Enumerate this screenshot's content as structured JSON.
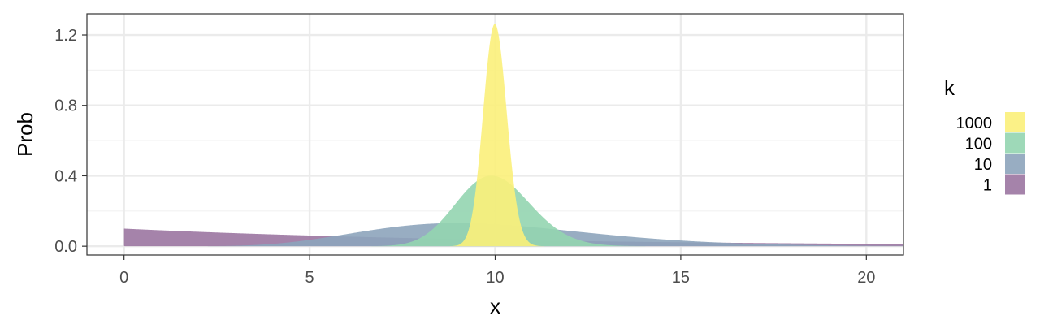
{
  "chart_data": {
    "type": "area",
    "xlabel": "x",
    "ylabel": "Prob",
    "xlim": [
      -1,
      21
    ],
    "ylim": [
      -0.05,
      1.32
    ],
    "x_ticks": [
      0,
      5,
      10,
      15,
      20
    ],
    "x_tick_labels": [
      "0",
      "5",
      "10",
      "15",
      "20"
    ],
    "y_ticks": [
      0.0,
      0.4,
      0.8,
      1.2
    ],
    "y_tick_labels": [
      "0.0",
      "0.4",
      "0.8",
      "1.2"
    ],
    "grid": true,
    "legend": {
      "title": "k",
      "position": "right",
      "entries": [
        "1000",
        "100",
        "10",
        "1"
      ]
    },
    "series": [
      {
        "name": "1",
        "color": "#9b76a1",
        "shape": 1,
        "mean": 10
      },
      {
        "name": "10",
        "color": "#8da4bb",
        "shape": 10,
        "mean": 10
      },
      {
        "name": "100",
        "color": "#93d5b0",
        "shape": 100,
        "mean": 10
      },
      {
        "name": "1000",
        "color": "#fbf07a",
        "shape": 1000,
        "mean": 10
      }
    ]
  }
}
